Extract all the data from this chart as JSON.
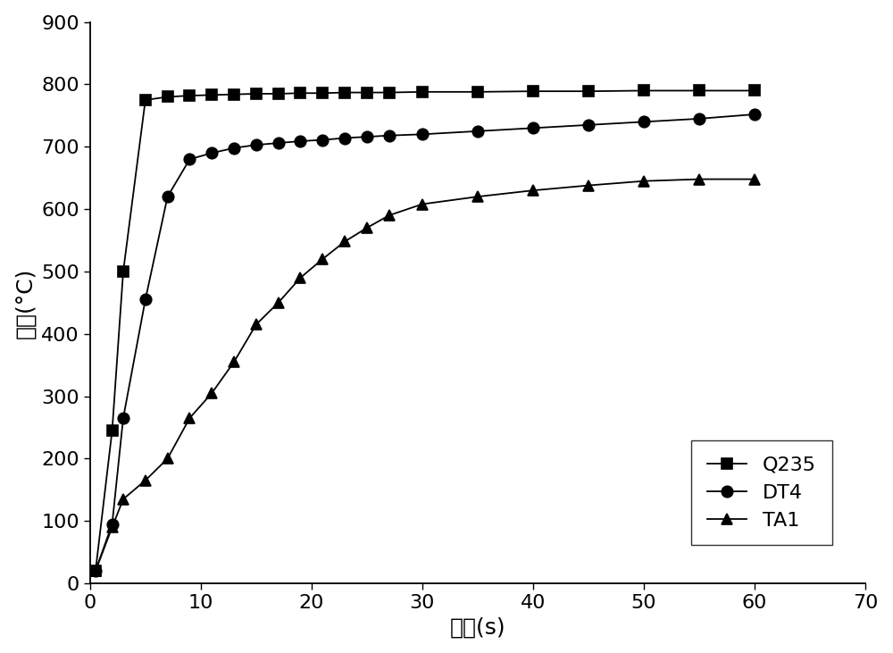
{
  "title": "",
  "xlabel": "时间(s)",
  "ylabel": "温度(°C)",
  "xlim": [
    0,
    70
  ],
  "ylim": [
    0,
    900
  ],
  "xticks": [
    0,
    10,
    20,
    30,
    40,
    50,
    60,
    70
  ],
  "yticks": [
    0,
    100,
    200,
    300,
    400,
    500,
    600,
    700,
    800,
    900
  ],
  "series": [
    {
      "label": "Q235",
      "marker": "s",
      "x": [
        0.5,
        2,
        3,
        5,
        7,
        9,
        11,
        13,
        15,
        17,
        19,
        21,
        23,
        25,
        27,
        30,
        35,
        40,
        45,
        50,
        55,
        60
      ],
      "y": [
        20,
        245,
        500,
        775,
        780,
        782,
        783,
        784,
        785,
        785,
        786,
        786,
        787,
        787,
        787,
        788,
        788,
        789,
        789,
        790,
        790,
        790
      ]
    },
    {
      "label": "DT4",
      "marker": "o",
      "x": [
        0.5,
        2,
        3,
        5,
        7,
        9,
        11,
        13,
        15,
        17,
        19,
        21,
        23,
        25,
        27,
        30,
        35,
        40,
        45,
        50,
        55,
        60
      ],
      "y": [
        20,
        95,
        265,
        455,
        620,
        680,
        690,
        698,
        703,
        706,
        709,
        711,
        714,
        716,
        718,
        720,
        725,
        730,
        735,
        740,
        745,
        752
      ]
    },
    {
      "label": "TA1",
      "marker": "^",
      "x": [
        0.5,
        2,
        3,
        5,
        7,
        9,
        11,
        13,
        15,
        17,
        19,
        21,
        23,
        25,
        27,
        30,
        35,
        40,
        45,
        50,
        55,
        60
      ],
      "y": [
        20,
        90,
        135,
        165,
        200,
        265,
        305,
        355,
        415,
        450,
        490,
        520,
        548,
        570,
        590,
        608,
        620,
        630,
        638,
        645,
        648,
        648
      ]
    }
  ],
  "line_color": "#000000",
  "marker_size": 9,
  "marker_facecolor": "#000000",
  "background_color": "#ffffff",
  "font_size_axis_label": 18,
  "font_size_tick": 16,
  "font_size_legend": 16
}
